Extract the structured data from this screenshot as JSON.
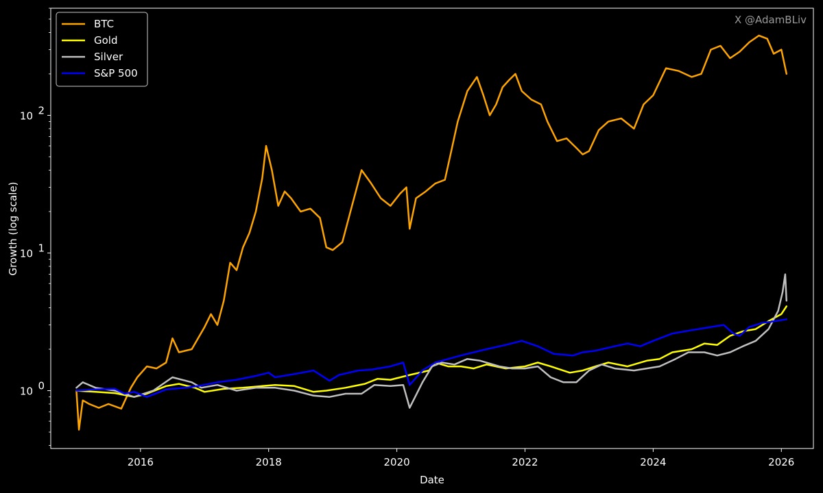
{
  "watermark": "X @AdamBLiv",
  "chart_data": {
    "type": "line",
    "xlabel": "Date",
    "ylabel": "Growth (log scale)",
    "yscale": "log",
    "xlim": [
      2014.6,
      2026.5
    ],
    "ylim": [
      0.38,
      600
    ],
    "x_ticks": [
      {
        "value": 2016,
        "label": "2016"
      },
      {
        "value": 2018,
        "label": "2018"
      },
      {
        "value": 2020,
        "label": "2020"
      },
      {
        "value": 2022,
        "label": "2022"
      },
      {
        "value": 2024,
        "label": "2024"
      },
      {
        "value": 2026,
        "label": "2026"
      }
    ],
    "y_ticks": [
      {
        "value": 1,
        "base": "10",
        "exp": "0"
      },
      {
        "value": 10,
        "base": "10",
        "exp": "1"
      },
      {
        "value": 100,
        "base": "10",
        "exp": "2"
      }
    ],
    "grid": false,
    "legend_position": "top-left",
    "series": [
      {
        "name": "BTC",
        "color": "#ffa500",
        "points": [
          [
            2015.0,
            1.0
          ],
          [
            2015.04,
            0.52
          ],
          [
            2015.1,
            0.85
          ],
          [
            2015.2,
            0.8
          ],
          [
            2015.35,
            0.75
          ],
          [
            2015.5,
            0.8
          ],
          [
            2015.7,
            0.74
          ],
          [
            2015.85,
            1.05
          ],
          [
            2015.95,
            1.25
          ],
          [
            2016.1,
            1.5
          ],
          [
            2016.25,
            1.45
          ],
          [
            2016.4,
            1.6
          ],
          [
            2016.5,
            2.4
          ],
          [
            2016.6,
            1.9
          ],
          [
            2016.8,
            2.0
          ],
          [
            2017.0,
            2.9
          ],
          [
            2017.1,
            3.6
          ],
          [
            2017.2,
            3.0
          ],
          [
            2017.3,
            4.5
          ],
          [
            2017.4,
            8.5
          ],
          [
            2017.5,
            7.5
          ],
          [
            2017.6,
            11.0
          ],
          [
            2017.7,
            14.0
          ],
          [
            2017.8,
            20.0
          ],
          [
            2017.9,
            35.0
          ],
          [
            2017.96,
            60.0
          ],
          [
            2018.05,
            40.0
          ],
          [
            2018.15,
            22.0
          ],
          [
            2018.25,
            28.0
          ],
          [
            2018.35,
            25.0
          ],
          [
            2018.5,
            20.0
          ],
          [
            2018.65,
            21.0
          ],
          [
            2018.8,
            18.0
          ],
          [
            2018.9,
            11.0
          ],
          [
            2019.0,
            10.5
          ],
          [
            2019.15,
            12.0
          ],
          [
            2019.3,
            22.0
          ],
          [
            2019.45,
            40.0
          ],
          [
            2019.6,
            32.0
          ],
          [
            2019.75,
            25.0
          ],
          [
            2019.9,
            22.0
          ],
          [
            2020.05,
            27.0
          ],
          [
            2020.15,
            30.0
          ],
          [
            2020.2,
            15.0
          ],
          [
            2020.3,
            25.0
          ],
          [
            2020.45,
            28.0
          ],
          [
            2020.6,
            32.0
          ],
          [
            2020.75,
            34.0
          ],
          [
            2020.85,
            55.0
          ],
          [
            2020.95,
            90.0
          ],
          [
            2021.1,
            150.0
          ],
          [
            2021.25,
            190.0
          ],
          [
            2021.35,
            140.0
          ],
          [
            2021.45,
            100.0
          ],
          [
            2021.55,
            120.0
          ],
          [
            2021.65,
            160.0
          ],
          [
            2021.75,
            180.0
          ],
          [
            2021.85,
            200.0
          ],
          [
            2021.95,
            150.0
          ],
          [
            2022.1,
            130.0
          ],
          [
            2022.25,
            120.0
          ],
          [
            2022.35,
            90.0
          ],
          [
            2022.5,
            65.0
          ],
          [
            2022.65,
            68.0
          ],
          [
            2022.8,
            58.0
          ],
          [
            2022.9,
            52.0
          ],
          [
            2023.0,
            55.0
          ],
          [
            2023.15,
            78.0
          ],
          [
            2023.3,
            90.0
          ],
          [
            2023.5,
            95.0
          ],
          [
            2023.7,
            80.0
          ],
          [
            2023.85,
            120.0
          ],
          [
            2024.0,
            140.0
          ],
          [
            2024.2,
            220.0
          ],
          [
            2024.4,
            210.0
          ],
          [
            2024.6,
            190.0
          ],
          [
            2024.75,
            200.0
          ],
          [
            2024.9,
            300.0
          ],
          [
            2025.05,
            320.0
          ],
          [
            2025.2,
            260.0
          ],
          [
            2025.35,
            290.0
          ],
          [
            2025.5,
            340.0
          ],
          [
            2025.65,
            380.0
          ],
          [
            2025.78,
            360.0
          ],
          [
            2025.88,
            280.0
          ],
          [
            2026.0,
            300.0
          ],
          [
            2026.08,
            200.0
          ]
        ]
      },
      {
        "name": "Gold",
        "color": "#ffff00",
        "points": [
          [
            2015.0,
            1.0
          ],
          [
            2015.3,
            0.98
          ],
          [
            2015.6,
            0.96
          ],
          [
            2015.9,
            0.9
          ],
          [
            2016.1,
            0.95
          ],
          [
            2016.4,
            1.08
          ],
          [
            2016.6,
            1.12
          ],
          [
            2016.85,
            1.05
          ],
          [
            2017.0,
            0.98
          ],
          [
            2017.3,
            1.03
          ],
          [
            2017.6,
            1.05
          ],
          [
            2017.9,
            1.08
          ],
          [
            2018.1,
            1.1
          ],
          [
            2018.4,
            1.08
          ],
          [
            2018.7,
            0.98
          ],
          [
            2018.9,
            1.0
          ],
          [
            2019.2,
            1.05
          ],
          [
            2019.5,
            1.12
          ],
          [
            2019.7,
            1.22
          ],
          [
            2019.9,
            1.2
          ],
          [
            2020.2,
            1.3
          ],
          [
            2020.5,
            1.4
          ],
          [
            2020.6,
            1.6
          ],
          [
            2020.8,
            1.5
          ],
          [
            2021.0,
            1.5
          ],
          [
            2021.2,
            1.45
          ],
          [
            2021.4,
            1.55
          ],
          [
            2021.7,
            1.45
          ],
          [
            2022.0,
            1.5
          ],
          [
            2022.2,
            1.6
          ],
          [
            2022.4,
            1.5
          ],
          [
            2022.7,
            1.35
          ],
          [
            2022.9,
            1.4
          ],
          [
            2023.1,
            1.5
          ],
          [
            2023.3,
            1.6
          ],
          [
            2023.6,
            1.5
          ],
          [
            2023.9,
            1.65
          ],
          [
            2024.1,
            1.7
          ],
          [
            2024.3,
            1.9
          ],
          [
            2024.6,
            2.0
          ],
          [
            2024.8,
            2.2
          ],
          [
            2025.0,
            2.15
          ],
          [
            2025.2,
            2.5
          ],
          [
            2025.4,
            2.7
          ],
          [
            2025.6,
            2.8
          ],
          [
            2025.8,
            3.2
          ],
          [
            2026.0,
            3.6
          ],
          [
            2026.08,
            4.1
          ]
        ]
      },
      {
        "name": "Silver",
        "color": "#c0c0c0",
        "points": [
          [
            2015.0,
            1.05
          ],
          [
            2015.1,
            1.15
          ],
          [
            2015.3,
            1.05
          ],
          [
            2015.6,
            1.0
          ],
          [
            2015.9,
            0.9
          ],
          [
            2016.2,
            1.0
          ],
          [
            2016.5,
            1.25
          ],
          [
            2016.8,
            1.15
          ],
          [
            2016.95,
            1.05
          ],
          [
            2017.2,
            1.1
          ],
          [
            2017.5,
            1.0
          ],
          [
            2017.8,
            1.05
          ],
          [
            2018.1,
            1.05
          ],
          [
            2018.4,
            1.0
          ],
          [
            2018.7,
            0.92
          ],
          [
            2018.95,
            0.9
          ],
          [
            2019.2,
            0.95
          ],
          [
            2019.45,
            0.95
          ],
          [
            2019.65,
            1.1
          ],
          [
            2019.9,
            1.08
          ],
          [
            2020.1,
            1.1
          ],
          [
            2020.2,
            0.75
          ],
          [
            2020.4,
            1.15
          ],
          [
            2020.55,
            1.5
          ],
          [
            2020.7,
            1.6
          ],
          [
            2020.9,
            1.55
          ],
          [
            2021.1,
            1.7
          ],
          [
            2021.3,
            1.65
          ],
          [
            2021.6,
            1.5
          ],
          [
            2021.8,
            1.45
          ],
          [
            2022.0,
            1.45
          ],
          [
            2022.2,
            1.5
          ],
          [
            2022.4,
            1.25
          ],
          [
            2022.6,
            1.15
          ],
          [
            2022.8,
            1.15
          ],
          [
            2023.0,
            1.4
          ],
          [
            2023.2,
            1.55
          ],
          [
            2023.4,
            1.45
          ],
          [
            2023.7,
            1.4
          ],
          [
            2023.9,
            1.45
          ],
          [
            2024.1,
            1.5
          ],
          [
            2024.35,
            1.7
          ],
          [
            2024.55,
            1.9
          ],
          [
            2024.8,
            1.9
          ],
          [
            2025.0,
            1.8
          ],
          [
            2025.2,
            1.9
          ],
          [
            2025.4,
            2.1
          ],
          [
            2025.6,
            2.3
          ],
          [
            2025.8,
            2.8
          ],
          [
            2025.95,
            3.8
          ],
          [
            2026.02,
            5.2
          ],
          [
            2026.06,
            7.0
          ],
          [
            2026.08,
            4.5
          ]
        ]
      },
      {
        "name": "S&P 500",
        "color": "#0000ff",
        "points": [
          [
            2015.0,
            1.0
          ],
          [
            2015.3,
            1.02
          ],
          [
            2015.6,
            1.03
          ],
          [
            2015.75,
            0.95
          ],
          [
            2015.9,
            0.98
          ],
          [
            2016.1,
            0.9
          ],
          [
            2016.4,
            1.02
          ],
          [
            2016.7,
            1.05
          ],
          [
            2016.9,
            1.08
          ],
          [
            2017.2,
            1.15
          ],
          [
            2017.5,
            1.2
          ],
          [
            2017.8,
            1.28
          ],
          [
            2018.0,
            1.35
          ],
          [
            2018.1,
            1.25
          ],
          [
            2018.4,
            1.32
          ],
          [
            2018.7,
            1.4
          ],
          [
            2018.95,
            1.18
          ],
          [
            2019.1,
            1.3
          ],
          [
            2019.4,
            1.4
          ],
          [
            2019.6,
            1.42
          ],
          [
            2019.9,
            1.5
          ],
          [
            2020.1,
            1.6
          ],
          [
            2020.2,
            1.1
          ],
          [
            2020.4,
            1.4
          ],
          [
            2020.6,
            1.6
          ],
          [
            2020.9,
            1.75
          ],
          [
            2021.1,
            1.85
          ],
          [
            2021.4,
            2.0
          ],
          [
            2021.7,
            2.15
          ],
          [
            2021.95,
            2.3
          ],
          [
            2022.2,
            2.1
          ],
          [
            2022.45,
            1.85
          ],
          [
            2022.75,
            1.8
          ],
          [
            2022.9,
            1.9
          ],
          [
            2023.1,
            1.95
          ],
          [
            2023.4,
            2.1
          ],
          [
            2023.6,
            2.2
          ],
          [
            2023.8,
            2.1
          ],
          [
            2024.0,
            2.3
          ],
          [
            2024.3,
            2.6
          ],
          [
            2024.6,
            2.75
          ],
          [
            2024.9,
            2.9
          ],
          [
            2025.1,
            3.0
          ],
          [
            2025.25,
            2.6
          ],
          [
            2025.35,
            2.5
          ],
          [
            2025.5,
            2.9
          ],
          [
            2025.7,
            3.1
          ],
          [
            2025.9,
            3.2
          ],
          [
            2026.08,
            3.3
          ]
        ]
      }
    ]
  }
}
